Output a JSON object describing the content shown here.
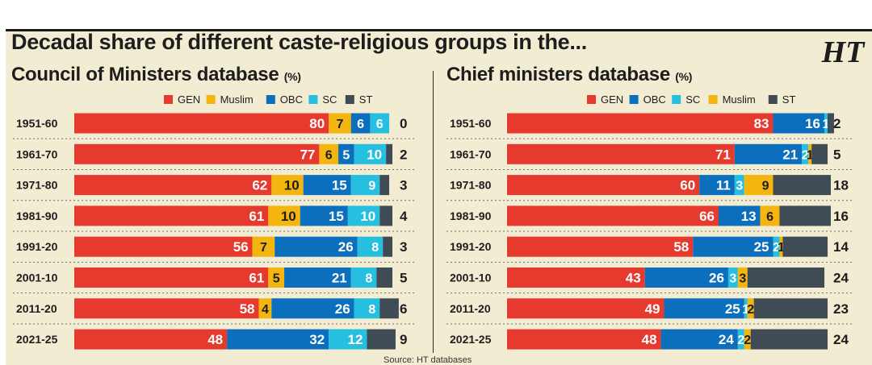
{
  "title": "Decadal share of different caste-religious groups in the...",
  "logo": "HT",
  "source": "Source: HT databases",
  "colors": {
    "GEN": "#e63a2e",
    "Muslim": "#f5b50f",
    "OBC": "#0c6fbd",
    "SC": "#27bfe0",
    "ST": "#3f4b55",
    "text": "#1d1d1d",
    "background": "#f2ecd2",
    "label_light": "#ffffff",
    "label_dark": "#1d1d1d"
  },
  "left_panel": {
    "subtitle": "Council of Ministers database",
    "unit": "(%)"
  },
  "right_panel": {
    "subtitle": "Chief ministers database",
    "unit": "(%)"
  },
  "chart_data": [
    {
      "type": "bar",
      "orientation": "horizontal-stacked",
      "title": "Council of Ministers database (%)",
      "categories": [
        "1951-60",
        "1961-70",
        "1971-80",
        "1981-90",
        "1991-20",
        "2001-10",
        "2011-20",
        "2021-25"
      ],
      "series": [
        {
          "name": "GEN",
          "values": [
            80,
            77,
            62,
            61,
            56,
            61,
            58,
            48
          ]
        },
        {
          "name": "Muslim",
          "values": [
            7,
            6,
            10,
            10,
            7,
            5,
            4,
            0
          ]
        },
        {
          "name": "OBC",
          "values": [
            6,
            5,
            15,
            15,
            26,
            21,
            26,
            32
          ]
        },
        {
          "name": "SC",
          "values": [
            6,
            10,
            9,
            10,
            8,
            8,
            8,
            12
          ]
        },
        {
          "name": "ST",
          "values": [
            0,
            2,
            3,
            4,
            3,
            5,
            6,
            9
          ]
        }
      ],
      "legend": [
        "GEN",
        "Muslim",
        "OBC",
        "SC",
        "ST"
      ],
      "xlim": [
        0,
        100
      ]
    },
    {
      "type": "bar",
      "orientation": "horizontal-stacked",
      "title": "Chief ministers database (%)",
      "categories": [
        "1951-60",
        "1961-70",
        "1971-80",
        "1981-90",
        "1991-20",
        "2001-10",
        "2011-20",
        "2021-25"
      ],
      "series": [
        {
          "name": "GEN",
          "values": [
            83,
            71,
            60,
            66,
            58,
            43,
            49,
            48
          ]
        },
        {
          "name": "OBC",
          "values": [
            16,
            21,
            11,
            13,
            25,
            26,
            25,
            24
          ]
        },
        {
          "name": "SC",
          "values": [
            1,
            2,
            3,
            0,
            2,
            3,
            1,
            2
          ]
        },
        {
          "name": "Muslim",
          "values": [
            0,
            1,
            9,
            6,
            1,
            3,
            2,
            2
          ]
        },
        {
          "name": "ST",
          "values": [
            2,
            5,
            18,
            16,
            14,
            24,
            23,
            24
          ]
        }
      ],
      "legend": [
        "GEN",
        "OBC",
        "SC",
        "Muslim",
        "ST"
      ],
      "xlim": [
        0,
        100
      ]
    }
  ]
}
